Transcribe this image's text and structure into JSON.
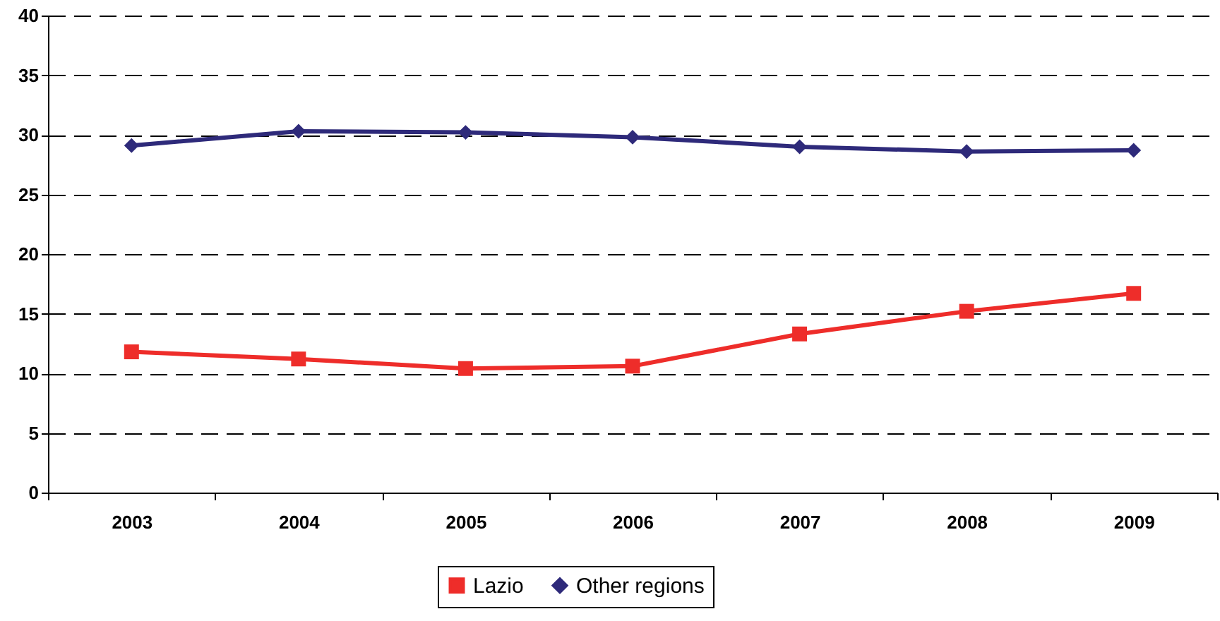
{
  "chart_data": {
    "type": "line",
    "categories": [
      "2003",
      "2004",
      "2005",
      "2006",
      "2007",
      "2008",
      "2009"
    ],
    "series": [
      {
        "name": "Lazio",
        "color": "#ee2d2a",
        "marker": "square",
        "values": [
          11.8,
          11.2,
          10.4,
          10.6,
          13.3,
          15.2,
          16.7
        ]
      },
      {
        "name": "Other regions",
        "color": "#2e2a7a",
        "marker": "diamond",
        "values": [
          29.1,
          30.3,
          30.2,
          29.8,
          29.0,
          28.6,
          28.7
        ]
      }
    ],
    "ylim": [
      0,
      40
    ],
    "yticks": [
      0,
      5,
      10,
      15,
      20,
      25,
      30,
      35,
      40
    ],
    "grid": "y",
    "line_style": "solid",
    "legend": "bottom"
  }
}
